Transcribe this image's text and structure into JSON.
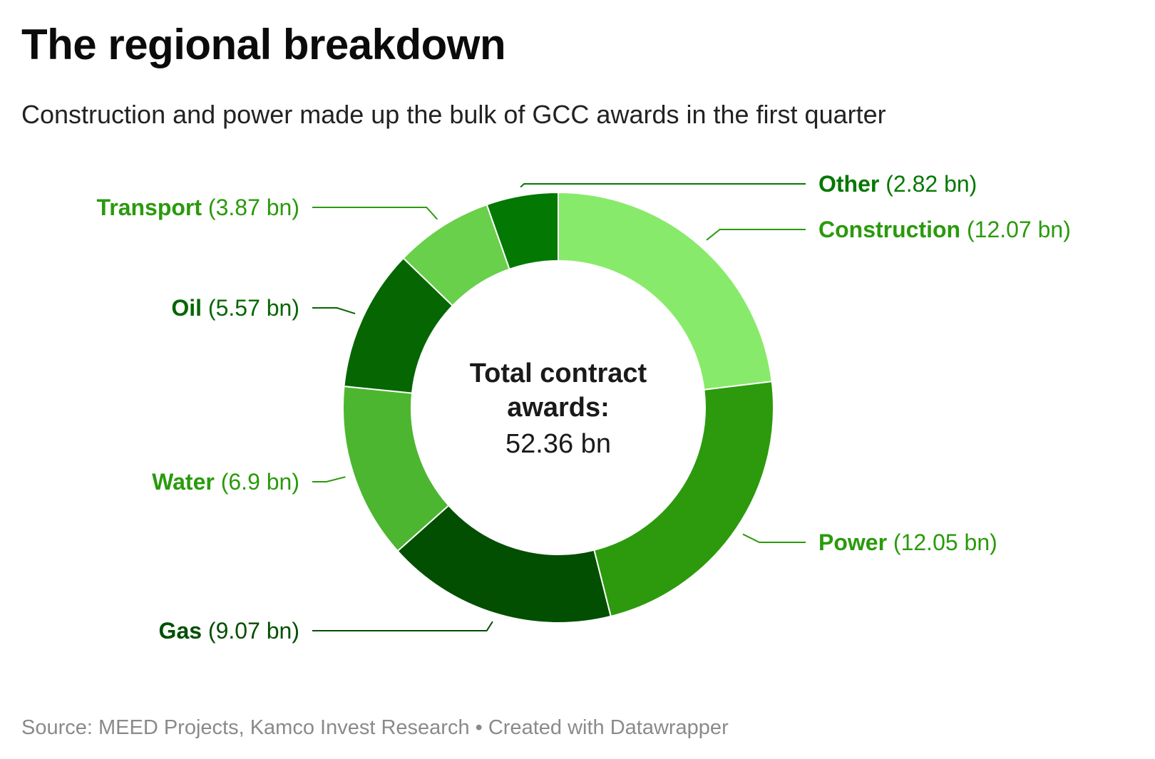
{
  "header": {
    "title": "The regional breakdown",
    "subtitle": "Construction and power made up the bulk of GCC awards in the first quarter"
  },
  "chart_data": {
    "type": "pie",
    "variant": "donut",
    "title": "The regional breakdown",
    "subtitle": "Construction and power made up the bulk of GCC awards in the first quarter",
    "center_title_lines": [
      "Total contract",
      "awards:"
    ],
    "center_value": "52.36 bn",
    "total": 52.36,
    "unit": "bn",
    "slices": [
      {
        "name": "Construction",
        "value": 12.07,
        "label": "(12.07 bn)",
        "color": "#88ea6a",
        "label_color": "#2a9a0c"
      },
      {
        "name": "Power",
        "value": 12.05,
        "label": "(12.05 bn)",
        "color": "#2c9a0c",
        "label_color": "#2a9a0c"
      },
      {
        "name": "Gas",
        "value": 9.07,
        "label": "(9.07 bn)",
        "color": "#034f01",
        "label_color": "#034f01"
      },
      {
        "name": "Water",
        "value": 6.9,
        "label": "(6.9 bn)",
        "color": "#4cb630",
        "label_color": "#2a9a0c"
      },
      {
        "name": "Oil",
        "value": 5.57,
        "label": "(5.57 bn)",
        "color": "#056602",
        "label_color": "#056602"
      },
      {
        "name": "Transport",
        "value": 3.87,
        "label": "(3.87 bn)",
        "color": "#68d04a",
        "label_color": "#2a9a0c"
      },
      {
        "name": "Other",
        "value": 2.82,
        "label": "(2.82 bn)",
        "color": "#037802",
        "label_color": "#037802"
      }
    ],
    "legend": "none"
  },
  "footer": {
    "text": "Source: MEED Projects, Kamco Invest Research • Created with Datawrapper"
  },
  "colors": {
    "leader_line": "#2a9a0c",
    "slice_border": "#ffffff"
  }
}
